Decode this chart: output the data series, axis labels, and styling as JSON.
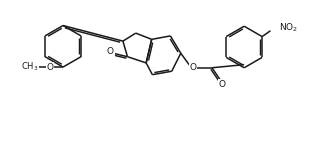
{
  "background": "#ffffff",
  "line_color": "#1a1a1a",
  "line_width": 1.1,
  "font_size": 6.5,
  "fig_width": 3.29,
  "fig_height": 1.48,
  "dpi": 100,
  "xlim": [
    0,
    9.5
  ],
  "ylim": [
    0,
    4.2
  ]
}
